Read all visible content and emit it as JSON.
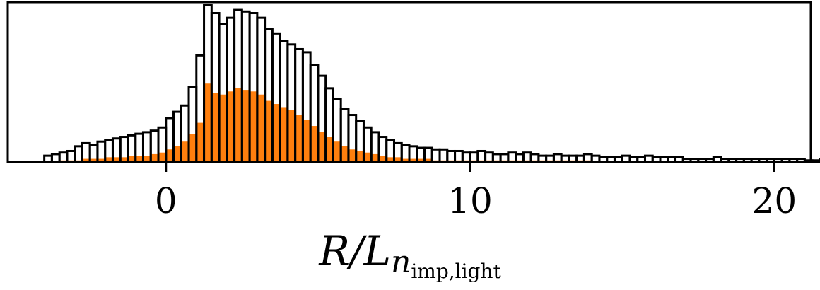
{
  "chart_data": {
    "type": "bar",
    "subtype": "overlaid-histogram",
    "title": "",
    "xlabel": {
      "main": "R/L",
      "sub": "n",
      "subsub": "imp,light"
    },
    "ylabel": "",
    "xlim": [
      -5.2,
      21.2
    ],
    "ylim": [
      0,
      1.02
    ],
    "x_ticks": [
      0,
      10,
      20
    ],
    "y_ticks": [],
    "grid": false,
    "bin_width": 0.25,
    "series": [
      {
        "style": "outline",
        "edge_color": "#000000",
        "bins_start": -4.0,
        "values": [
          0.04,
          0.05,
          0.06,
          0.07,
          0.1,
          0.12,
          0.11,
          0.13,
          0.14,
          0.15,
          0.16,
          0.17,
          0.18,
          0.19,
          0.2,
          0.22,
          0.28,
          0.32,
          0.36,
          0.48,
          0.68,
          1.0,
          0.95,
          0.88,
          0.92,
          0.97,
          0.96,
          0.95,
          0.92,
          0.85,
          0.82,
          0.77,
          0.75,
          0.72,
          0.7,
          0.62,
          0.55,
          0.47,
          0.4,
          0.34,
          0.3,
          0.26,
          0.22,
          0.19,
          0.16,
          0.14,
          0.12,
          0.11,
          0.1,
          0.09,
          0.09,
          0.08,
          0.08,
          0.07,
          0.07,
          0.06,
          0.06,
          0.07,
          0.06,
          0.05,
          0.05,
          0.06,
          0.05,
          0.06,
          0.05,
          0.04,
          0.04,
          0.05,
          0.04,
          0.04,
          0.04,
          0.05,
          0.04,
          0.03,
          0.03,
          0.03,
          0.04,
          0.03,
          0.03,
          0.04,
          0.03,
          0.03,
          0.03,
          0.03,
          0.02,
          0.02,
          0.02,
          0.02,
          0.03,
          0.02,
          0.02,
          0.02,
          0.02,
          0.02,
          0.02,
          0.02,
          0.02,
          0.02,
          0.02,
          0.02,
          0.01,
          0.01,
          0.02,
          0.01,
          0.01,
          0.01,
          0.01,
          0.01,
          0.01,
          0.01,
          0.01,
          0.01,
          0.01,
          0.01,
          0.01,
          0.01,
          0.01,
          0.01,
          0.01,
          0.01,
          0.01,
          0.01,
          0.01,
          0.01,
          0.01,
          0.01,
          0.01,
          0.01,
          0.01,
          0.01,
          0.01,
          0.01,
          0.01,
          0.01,
          0.01,
          0.01,
          0.01,
          0.02,
          0.01,
          0.01,
          0.01,
          0.02,
          0.01,
          0.01,
          0.01,
          0.01,
          0.01,
          0.01,
          0.01,
          0.01,
          0.01,
          0.01,
          0.01,
          0.01,
          0.01,
          0.02,
          0.01,
          0.01,
          0.01,
          0.02,
          0.01,
          0.01,
          0.01,
          0.01,
          0.01,
          0.02,
          0.01,
          0.01,
          0.01,
          0.01,
          0.01,
          0.01,
          0.02,
          0.01,
          0.01,
          0.01,
          0.01,
          0.01,
          0.01,
          0.01,
          0.01,
          0.01,
          0.01,
          0.01,
          0.01,
          0.01,
          0.01,
          0.01,
          0.01,
          0.01,
          0.01,
          0.01,
          0.01,
          0.01,
          0.01,
          0.01,
          0.01,
          0.01,
          0.01,
          0.01,
          0.01,
          0.01,
          0.01,
          0.01,
          0.01,
          0.01,
          0.01,
          0.01,
          0.01,
          0.01,
          0.01,
          0.01,
          0.01,
          0.01,
          0.01,
          0.01,
          0.01,
          0.02,
          0.01,
          0.02,
          0.01,
          0.01,
          0.01
        ]
      },
      {
        "style": "filled",
        "fill_color": "#ff7f0e",
        "bins_start": -4.0,
        "values": [
          0.0,
          0.0,
          0.01,
          0.01,
          0.01,
          0.02,
          0.02,
          0.02,
          0.03,
          0.03,
          0.03,
          0.04,
          0.04,
          0.04,
          0.05,
          0.06,
          0.08,
          0.1,
          0.13,
          0.18,
          0.25,
          0.5,
          0.44,
          0.43,
          0.45,
          0.47,
          0.46,
          0.45,
          0.43,
          0.39,
          0.37,
          0.35,
          0.33,
          0.3,
          0.27,
          0.23,
          0.19,
          0.16,
          0.13,
          0.1,
          0.08,
          0.07,
          0.06,
          0.05,
          0.04,
          0.03,
          0.03,
          0.02,
          0.02,
          0.02,
          0.02,
          0.01,
          0.01,
          0.01,
          0.01,
          0.01,
          0.01,
          0.01,
          0.01,
          0.01,
          0.01,
          0.01,
          0.01,
          0.01,
          0.01,
          0.01,
          0.01,
          0.01,
          0.01,
          0.01,
          0.01,
          0.01,
          0.0,
          0.0,
          0.0,
          0.0,
          0.0,
          0.0,
          0.0,
          0.0,
          0.0,
          0.0,
          0.0,
          0.0,
          0.0,
          0.0,
          0.0,
          0.0,
          0.0,
          0.0,
          0.0,
          0.0,
          0.0,
          0.0,
          0.0,
          0.0,
          0.0,
          0.0,
          0.0,
          0.0,
          0.0,
          0.0,
          0.0,
          0.0,
          0.0,
          0.0,
          0.0,
          0.0,
          0.0,
          0.0,
          0.0,
          0.0,
          0.0,
          0.0,
          0.0,
          0.0,
          0.0,
          0.0,
          0.0,
          0.0,
          0.0,
          0.0,
          0.0,
          0.0,
          0.0,
          0.0,
          0.0,
          0.0,
          0.0,
          0.0,
          0.0,
          0.0,
          0.0,
          0.0,
          0.0,
          0.0,
          0.0,
          0.0,
          0.0,
          0.0,
          0.0,
          0.0,
          0.0,
          0.0,
          0.0,
          0.0,
          0.0,
          0.0,
          0.0,
          0.0,
          0.0,
          0.0,
          0.0,
          0.0,
          0.0,
          0.0,
          0.0,
          0.0,
          0.0,
          0.0,
          0.0,
          0.0,
          0.0,
          0.0,
          0.0,
          0.0,
          0.0,
          0.0,
          0.0,
          0.0,
          0.0,
          0.0,
          0.0,
          0.0,
          0.0,
          0.0,
          0.0,
          0.0,
          0.0,
          0.0,
          0.0,
          0.0,
          0.0,
          0.0,
          0.0,
          0.0,
          0.0,
          0.0,
          0.0,
          0.0,
          0.0,
          0.0,
          0.0,
          0.0,
          0.0,
          0.0,
          0.0,
          0.0,
          0.0,
          0.0,
          0.0,
          0.0,
          0.0,
          0.0,
          0.0,
          0.0,
          0.0,
          0.0,
          0.0,
          0.0,
          0.0,
          0.0,
          0.0,
          0.0,
          0.0,
          0.0,
          0.0,
          0.0,
          0.0,
          0.0,
          0.0
        ]
      }
    ]
  }
}
